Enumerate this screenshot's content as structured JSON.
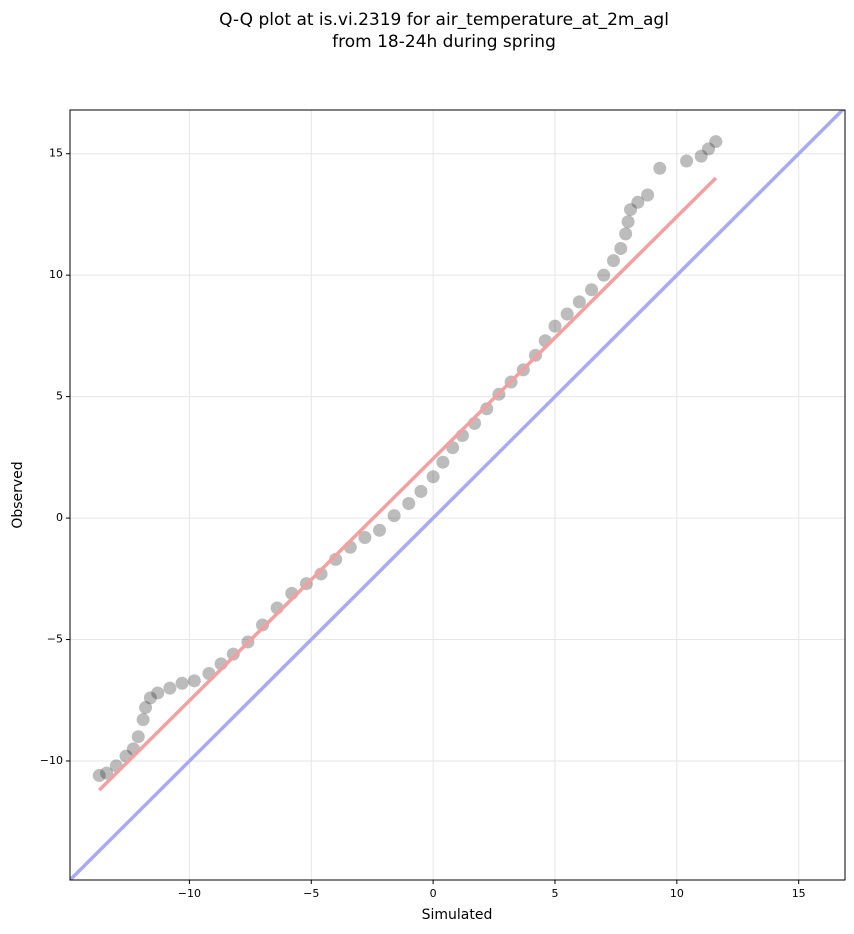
{
  "chart_data": {
    "type": "scatter",
    "title": [
      "Q-Q plot at is.vi.2319 for air_temperature_at_2m_agl",
      "from 18-24h during spring"
    ],
    "xlabel": "Simulated",
    "ylabel": "Observed",
    "xlim": [
      -14.9,
      16.9
    ],
    "ylim": [
      -14.9,
      16.8
    ],
    "xticks": [
      {
        "value": -10,
        "label": "−10"
      },
      {
        "value": -5,
        "label": "−5"
      },
      0,
      5,
      10,
      15
    ],
    "yticks": [
      {
        "value": -10,
        "label": "−10"
      },
      {
        "value": -5,
        "label": "−5"
      },
      0,
      5,
      10,
      15
    ],
    "grid": true,
    "series": [
      {
        "color": "#222222",
        "x": [
          -13.7,
          -13.4,
          -13.0,
          -12.6,
          -12.3,
          -12.1,
          -11.9,
          -11.8,
          -11.6,
          -11.3,
          -10.8,
          -10.3,
          -9.8,
          -9.2,
          -8.7,
          -8.2,
          -7.6,
          -7.0,
          -6.4,
          -5.8,
          -5.2,
          -4.6,
          -4.0,
          -3.4,
          -2.8,
          -2.2,
          -1.6,
          -1.0,
          -0.5,
          0,
          0.4,
          0.8,
          1.2,
          1.7,
          2.2,
          2.7,
          3.2,
          3.7,
          4.2,
          4.6,
          5.0,
          5.5,
          6.0,
          6.5,
          7.0,
          7.4,
          7.7,
          7.9,
          8.0,
          8.1,
          8.4,
          8.8,
          9.3,
          10.4,
          11.0,
          11.3,
          11.6
        ],
        "values": [
          -10.6,
          -10.5,
          -10.2,
          -9.8,
          -9.5,
          -9.0,
          -8.3,
          -7.8,
          -7.4,
          -7.2,
          -7.0,
          -6.8,
          -6.7,
          -6.4,
          -6.0,
          -5.6,
          -5.1,
          -4.4,
          -3.7,
          -3.1,
          -2.7,
          -2.3,
          -1.7,
          -1.2,
          -0.8,
          -0.5,
          0.1,
          0.6,
          1.1,
          1.7,
          2.3,
          2.9,
          3.4,
          3.9,
          4.5,
          5.1,
          5.6,
          6.1,
          6.7,
          7.3,
          7.9,
          8.4,
          8.9,
          9.4,
          10.0,
          10.6,
          11.1,
          11.7,
          12.2,
          12.7,
          13.0,
          13.3,
          14.4,
          14.7,
          14.9,
          15.2,
          15.5
        ]
      }
    ],
    "lines": [
      {
        "color": "#a8aaf5",
        "x": [
          -14.9,
          16.9
        ],
        "y": [
          -14.9,
          16.9
        ]
      },
      {
        "color": "#f4a0a0",
        "x": [
          -13.7,
          11.6
        ],
        "y": [
          -11.2,
          14.0
        ]
      }
    ]
  }
}
